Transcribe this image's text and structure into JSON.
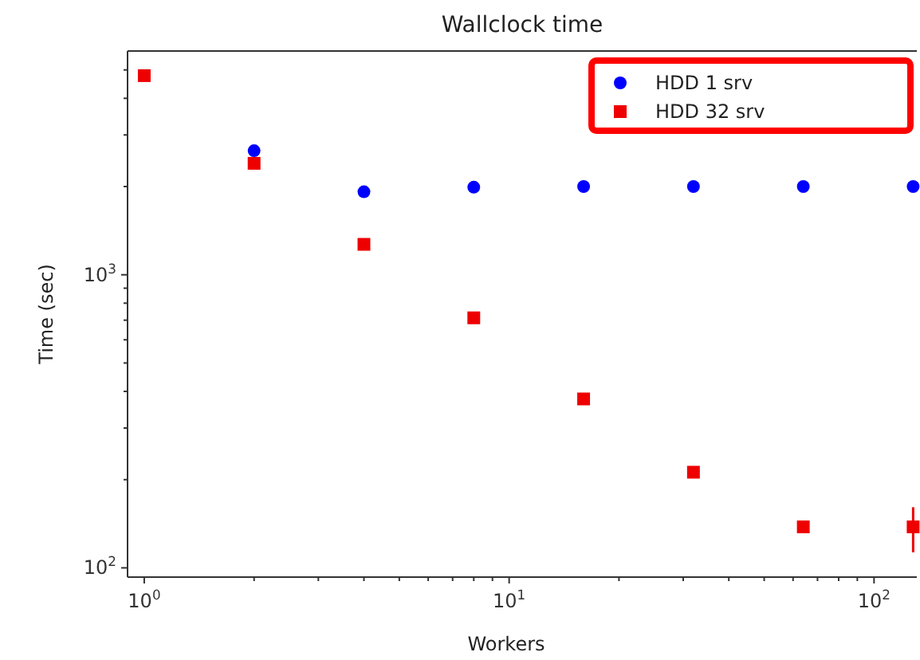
{
  "chart_data": {
    "type": "scatter",
    "title": "Wallclock time",
    "xlabel": "Workers",
    "ylabel": "Time (sec)",
    "log": "xy",
    "legend": "top right",
    "grid": false,
    "xlim": [
      0.9,
      131
    ],
    "ylim": [
      93,
      5800
    ],
    "xticks": [
      {
        "value": 1,
        "label": "10$^{0}$"
      },
      {
        "value": 2,
        "label": null
      },
      {
        "value": 3,
        "label": null
      },
      {
        "value": 4,
        "label": null
      },
      {
        "value": 5,
        "label": null
      },
      {
        "value": 6,
        "label": null
      },
      {
        "value": 7,
        "label": null
      },
      {
        "value": 8,
        "label": null
      },
      {
        "value": 9,
        "label": null
      },
      {
        "value": 10,
        "label": "10$^{1}$"
      },
      {
        "value": 20,
        "label": null
      },
      {
        "value": 30,
        "label": null
      },
      {
        "value": 40,
        "label": null
      },
      {
        "value": 50,
        "label": null
      },
      {
        "value": 60,
        "label": null
      },
      {
        "value": 70,
        "label": null
      },
      {
        "value": 80,
        "label": null
      },
      {
        "value": 90,
        "label": null
      },
      {
        "value": 100,
        "label": "10$^{2}$"
      }
    ],
    "yticks": [
      {
        "value": 100,
        "label": "10$^{2}$"
      },
      {
        "value": 200,
        "label": null
      },
      {
        "value": 300,
        "label": null
      },
      {
        "value": 400,
        "label": null
      },
      {
        "value": 500,
        "label": null
      },
      {
        "value": 600,
        "label": null
      },
      {
        "value": 700,
        "label": null
      },
      {
        "value": 800,
        "label": null
      },
      {
        "value": 900,
        "label": null
      },
      {
        "value": 1000,
        "label": "10$^{3}$"
      },
      {
        "value": 2000,
        "label": null
      },
      {
        "value": 3000,
        "label": null
      },
      {
        "value": 4000,
        "label": null
      },
      {
        "value": 5000,
        "label": null
      }
    ],
    "x": [
      1,
      2,
      4,
      8,
      16,
      32,
      64,
      128
    ],
    "series": [
      {
        "name": "HDD 1 srv",
        "color": "#0000ff",
        "marker": "circle",
        "values": [
          null,
          2650,
          1920,
          1990,
          2000,
          2000,
          2000,
          2000
        ]
      },
      {
        "name": "HDD 32 srv",
        "color": "#ee0000",
        "marker": "square",
        "values": [
          4780,
          2400,
          1270,
          713,
          377,
          212,
          138,
          138
        ],
        "errors": [
          null,
          null,
          null,
          null,
          null,
          null,
          null,
          [
            113,
            161
          ]
        ]
      }
    ]
  }
}
